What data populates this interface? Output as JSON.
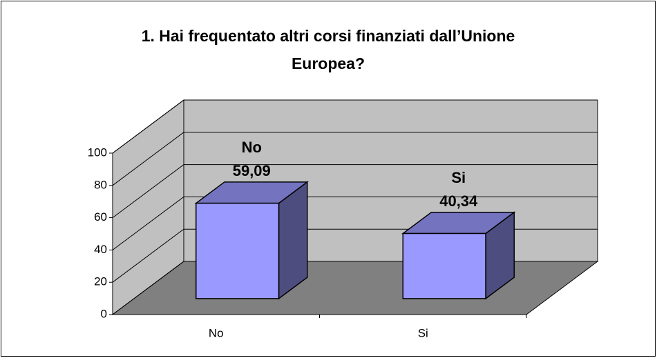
{
  "chart_data": {
    "type": "bar3d",
    "title": "1. Hai frequentato altri corsi finanziati dall’Unione Europea?",
    "categories": [
      "No",
      "Si"
    ],
    "values": [
      59.09,
      40.34
    ],
    "value_labels": [
      "59,09",
      "40,34"
    ],
    "color": "#9999ff",
    "ylim": [
      0,
      100
    ],
    "yticks": [
      0,
      20,
      40,
      60,
      80,
      100
    ],
    "grid": true
  }
}
